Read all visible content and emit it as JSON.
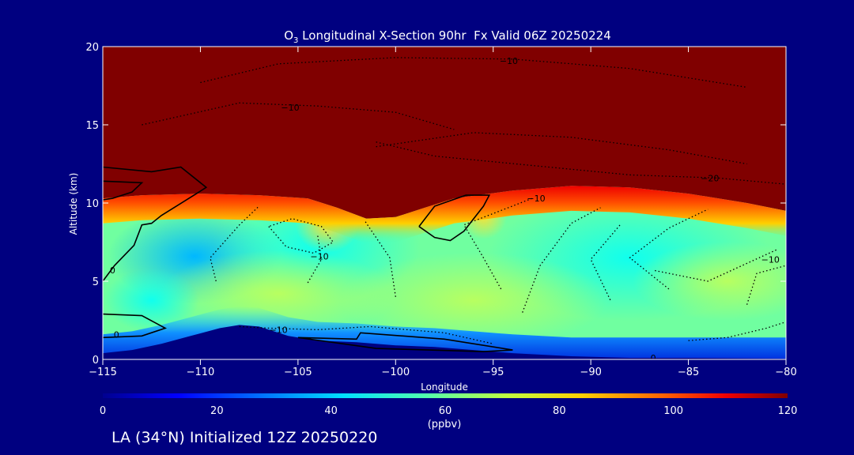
{
  "chart_data": {
    "type": "heatmap",
    "title_prefix": "O",
    "title_sub": "3",
    "title_rest": " Longitudinal X-Section 90hr  Fx Valid 06Z 20250224",
    "xlabel": "Longitude",
    "ylabel": "Altitude (km)",
    "xlim": [
      -115,
      -80
    ],
    "ylim": [
      0,
      20
    ],
    "xticks": [
      -115,
      -110,
      -105,
      -100,
      -95,
      -90,
      -85,
      -80
    ],
    "xtick_labels": [
      "−115",
      "−110",
      "−105",
      "−100",
      "−95",
      "−90",
      "−85",
      "−80"
    ],
    "yticks": [
      0,
      5,
      10,
      15,
      20
    ],
    "ytick_labels": [
      "0",
      "5",
      "10",
      "15",
      "20"
    ],
    "colorbar": {
      "min": 0,
      "max": 120,
      "ticks": [
        0,
        20,
        40,
        60,
        80,
        100,
        120
      ],
      "tick_labels": [
        "0",
        "20",
        "40",
        "60",
        "80",
        "100",
        "120"
      ],
      "unit_label": "(ppbv)"
    },
    "footer": "LA (34°N) Initialized 12Z 20250220",
    "contour_labels": [
      {
        "text": "−10",
        "x": -94.2,
        "y": 19.1
      },
      {
        "text": "−10",
        "x": -105.4,
        "y": 16.1
      },
      {
        "text": "−20",
        "x": -83.9,
        "y": 11.6
      },
      {
        "text": "−10",
        "x": -92.8,
        "y": 10.3
      },
      {
        "text": "−10",
        "x": -103.9,
        "y": 6.6
      },
      {
        "text": "−10",
        "x": -80.8,
        "y": 6.4
      },
      {
        "text": "0",
        "x": -114.5,
        "y": 5.7
      },
      {
        "text": "0",
        "x": -114.3,
        "y": 1.6
      },
      {
        "text": "−10",
        "x": -106.0,
        "y": 1.9
      },
      {
        "text": "0",
        "x": -86.8,
        "y": 0.1
      }
    ],
    "tropopause_km": [
      [
        -115,
        10.3
      ],
      [
        -113,
        10.5
      ],
      [
        -110,
        10.6
      ],
      [
        -107,
        10.5
      ],
      [
        -104.5,
        10.3
      ],
      [
        -103,
        9.7
      ],
      [
        -101.5,
        9.0
      ],
      [
        -100,
        9.1
      ],
      [
        -98.5,
        9.7
      ],
      [
        -97,
        10.3
      ],
      [
        -94,
        10.8
      ],
      [
        -91,
        11.1
      ],
      [
        -88,
        11.0
      ],
      [
        -85,
        10.6
      ],
      [
        -82,
        10.0
      ],
      [
        -80,
        9.5
      ]
    ],
    "terrain_km": [
      [
        -115,
        0.4
      ],
      [
        -113.5,
        0.6
      ],
      [
        -112,
        1.0
      ],
      [
        -110.5,
        1.5
      ],
      [
        -109,
        2.0
      ],
      [
        -108,
        2.2
      ],
      [
        -107,
        2.1
      ],
      [
        -105.5,
        1.5
      ],
      [
        -104,
        1.2
      ],
      [
        -102,
        1.1
      ],
      [
        -100,
        0.9
      ],
      [
        -98,
        0.8
      ],
      [
        -96,
        0.6
      ],
      [
        -94,
        0.4
      ],
      [
        -91,
        0.2
      ],
      [
        -88,
        0.1
      ],
      [
        -85,
        0.1
      ],
      [
        -80,
        0.05
      ]
    ],
    "colors": {
      "background": "#000080",
      "stratosphere": "#800000",
      "foreground": "#ffffff",
      "colormap": [
        "#00008f",
        "#0000ff",
        "#0070ff",
        "#00dfff",
        "#50ffaf",
        "#c0ff40",
        "#ffd000",
        "#ff6000",
        "#ef0000",
        "#800000"
      ]
    }
  }
}
